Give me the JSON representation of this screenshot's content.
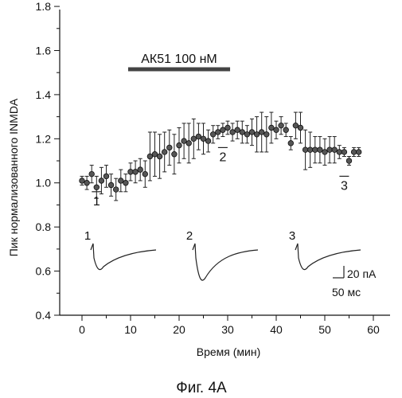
{
  "chart_data": {
    "type": "scatter",
    "ylabel": "Пик нормализованного INMDA",
    "xlabel": "Время (мин)",
    "caption": "Фиг. 4А",
    "xlim": [
      -3,
      63
    ],
    "ylim": [
      0.4,
      1.8
    ],
    "xticks": [
      "0",
      "10",
      "20",
      "30",
      "40",
      "50",
      "60"
    ],
    "yticks": [
      "0.4",
      "0.6",
      "0.8",
      "1.0",
      "1.2",
      "1.4",
      "1.6",
      "1.8"
    ],
    "drug": {
      "label": "АК51 100 нМ",
      "start": 9.5,
      "end": 30.5
    },
    "points": [
      {
        "x": 0,
        "y": 1.01,
        "e": 0.02
      },
      {
        "x": 1,
        "y": 1.0,
        "e": 0.03
      },
      {
        "x": 2,
        "y": 1.04,
        "e": 0.04
      },
      {
        "x": 3,
        "y": 0.98,
        "e": 0.05
      },
      {
        "x": 4,
        "y": 1.01,
        "e": 0.06
      },
      {
        "x": 5,
        "y": 1.03,
        "e": 0.05
      },
      {
        "x": 6,
        "y": 0.99,
        "e": 0.05
      },
      {
        "x": 7,
        "y": 0.97,
        "e": 0.05
      },
      {
        "x": 8,
        "y": 1.01,
        "e": 0.05
      },
      {
        "x": 9,
        "y": 1.0,
        "e": 0.04
      },
      {
        "x": 10,
        "y": 1.05,
        "e": 0.04
      },
      {
        "x": 11,
        "y": 1.05,
        "e": 0.05
      },
      {
        "x": 12,
        "y": 1.06,
        "e": 0.05
      },
      {
        "x": 13,
        "y": 1.04,
        "e": 0.06
      },
      {
        "x": 14,
        "y": 1.12,
        "e": 0.11
      },
      {
        "x": 15,
        "y": 1.13,
        "e": 0.1
      },
      {
        "x": 16,
        "y": 1.12,
        "e": 0.1
      },
      {
        "x": 17,
        "y": 1.14,
        "e": 0.09
      },
      {
        "x": 18,
        "y": 1.16,
        "e": 0.08
      },
      {
        "x": 19,
        "y": 1.13,
        "e": 0.09
      },
      {
        "x": 20,
        "y": 1.17,
        "e": 0.08
      },
      {
        "x": 21,
        "y": 1.19,
        "e": 0.08
      },
      {
        "x": 22,
        "y": 1.18,
        "e": 0.09
      },
      {
        "x": 23,
        "y": 1.2,
        "e": 0.09
      },
      {
        "x": 24,
        "y": 1.21,
        "e": 0.06
      },
      {
        "x": 25,
        "y": 1.2,
        "e": 0.07
      },
      {
        "x": 26,
        "y": 1.19,
        "e": 0.05
      },
      {
        "x": 27,
        "y": 1.22,
        "e": 0.04
      },
      {
        "x": 28,
        "y": 1.23,
        "e": 0.03
      },
      {
        "x": 29,
        "y": 1.24,
        "e": 0.03
      },
      {
        "x": 30,
        "y": 1.25,
        "e": 0.03
      },
      {
        "x": 31,
        "y": 1.23,
        "e": 0.04
      },
      {
        "x": 32,
        "y": 1.24,
        "e": 0.04
      },
      {
        "x": 33,
        "y": 1.23,
        "e": 0.05
      },
      {
        "x": 34,
        "y": 1.22,
        "e": 0.04
      },
      {
        "x": 35,
        "y": 1.23,
        "e": 0.06
      },
      {
        "x": 36,
        "y": 1.22,
        "e": 0.08
      },
      {
        "x": 37,
        "y": 1.23,
        "e": 0.09
      },
      {
        "x": 38,
        "y": 1.22,
        "e": 0.08
      },
      {
        "x": 39,
        "y": 1.25,
        "e": 0.07
      },
      {
        "x": 40,
        "y": 1.24,
        "e": 0.04
      },
      {
        "x": 41,
        "y": 1.26,
        "e": 0.04
      },
      {
        "x": 42,
        "y": 1.24,
        "e": 0.03
      },
      {
        "x": 43,
        "y": 1.18,
        "e": 0.03
      },
      {
        "x": 44,
        "y": 1.26,
        "e": 0.06
      },
      {
        "x": 45,
        "y": 1.25,
        "e": 0.07
      },
      {
        "x": 46,
        "y": 1.15,
        "e": 0.09
      },
      {
        "x": 47,
        "y": 1.15,
        "e": 0.08
      },
      {
        "x": 48,
        "y": 1.15,
        "e": 0.06
      },
      {
        "x": 49,
        "y": 1.15,
        "e": 0.06
      },
      {
        "x": 50,
        "y": 1.14,
        "e": 0.06
      },
      {
        "x": 51,
        "y": 1.15,
        "e": 0.06
      },
      {
        "x": 52,
        "y": 1.15,
        "e": 0.06
      },
      {
        "x": 53,
        "y": 1.14,
        "e": 0.03
      },
      {
        "x": 54,
        "y": 1.14,
        "e": 0.02
      },
      {
        "x": 55,
        "y": 1.1,
        "e": 0.02
      },
      {
        "x": 56,
        "y": 1.14,
        "e": 0.02
      },
      {
        "x": 57,
        "y": 1.14,
        "e": 0.02
      }
    ],
    "markers": [
      {
        "label": "1",
        "x": 3,
        "y": 0.96
      },
      {
        "label": "2",
        "x": 29,
        "y": 1.16
      },
      {
        "label": "3",
        "x": 54,
        "y": 1.03
      }
    ],
    "trace_labels": [
      "1",
      "2",
      "3"
    ],
    "scalebar": {
      "amplitude": "20 пА",
      "time": "50 мс"
    }
  }
}
